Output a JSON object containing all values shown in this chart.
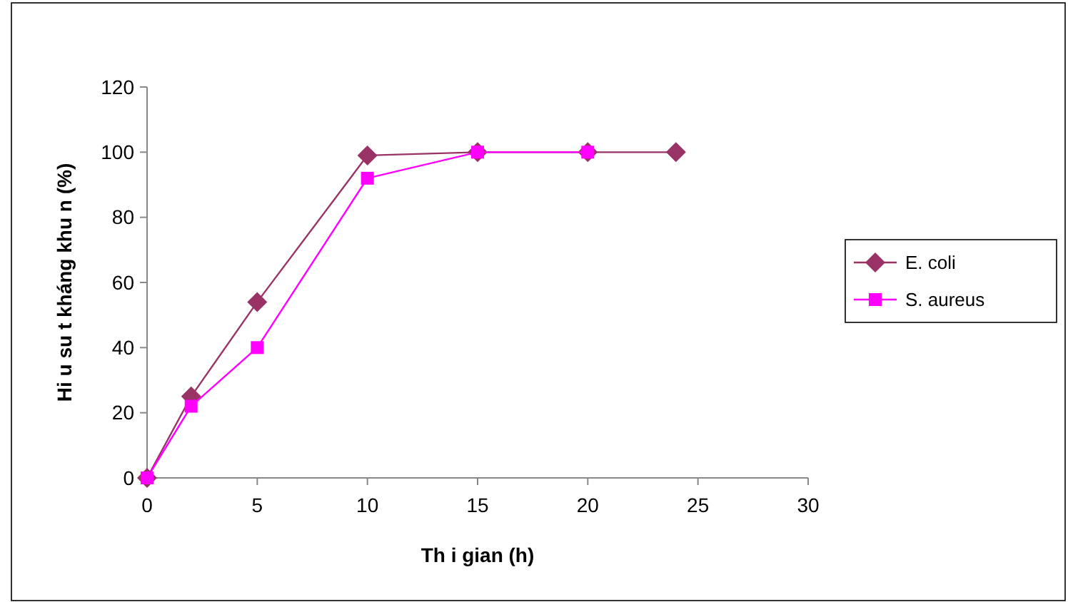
{
  "chart_data": {
    "type": "line",
    "xlabel": "Th i gian (h)",
    "ylabel": "Hi u su t kháng khu n (%)",
    "xlim": [
      0,
      30
    ],
    "xticks": [
      0,
      5,
      10,
      15,
      20,
      25,
      30
    ],
    "ylim": [
      0,
      120
    ],
    "yticks": [
      0,
      20,
      40,
      60,
      80,
      100,
      120
    ],
    "grid": false,
    "legend": "right",
    "line_style": "solid",
    "series": [
      {
        "name": "E. coli",
        "color": "#993366",
        "marker": "diamond",
        "x": [
          0,
          2,
          5,
          10,
          15,
          20,
          24
        ],
        "values": [
          0,
          25,
          54,
          99,
          100,
          100,
          100
        ]
      },
      {
        "name": "S. aureus",
        "color": "#ff00ff",
        "marker": "square",
        "x": [
          0,
          2,
          5,
          10,
          15,
          20
        ],
        "values": [
          0,
          22,
          40,
          92,
          100,
          100
        ]
      }
    ]
  }
}
